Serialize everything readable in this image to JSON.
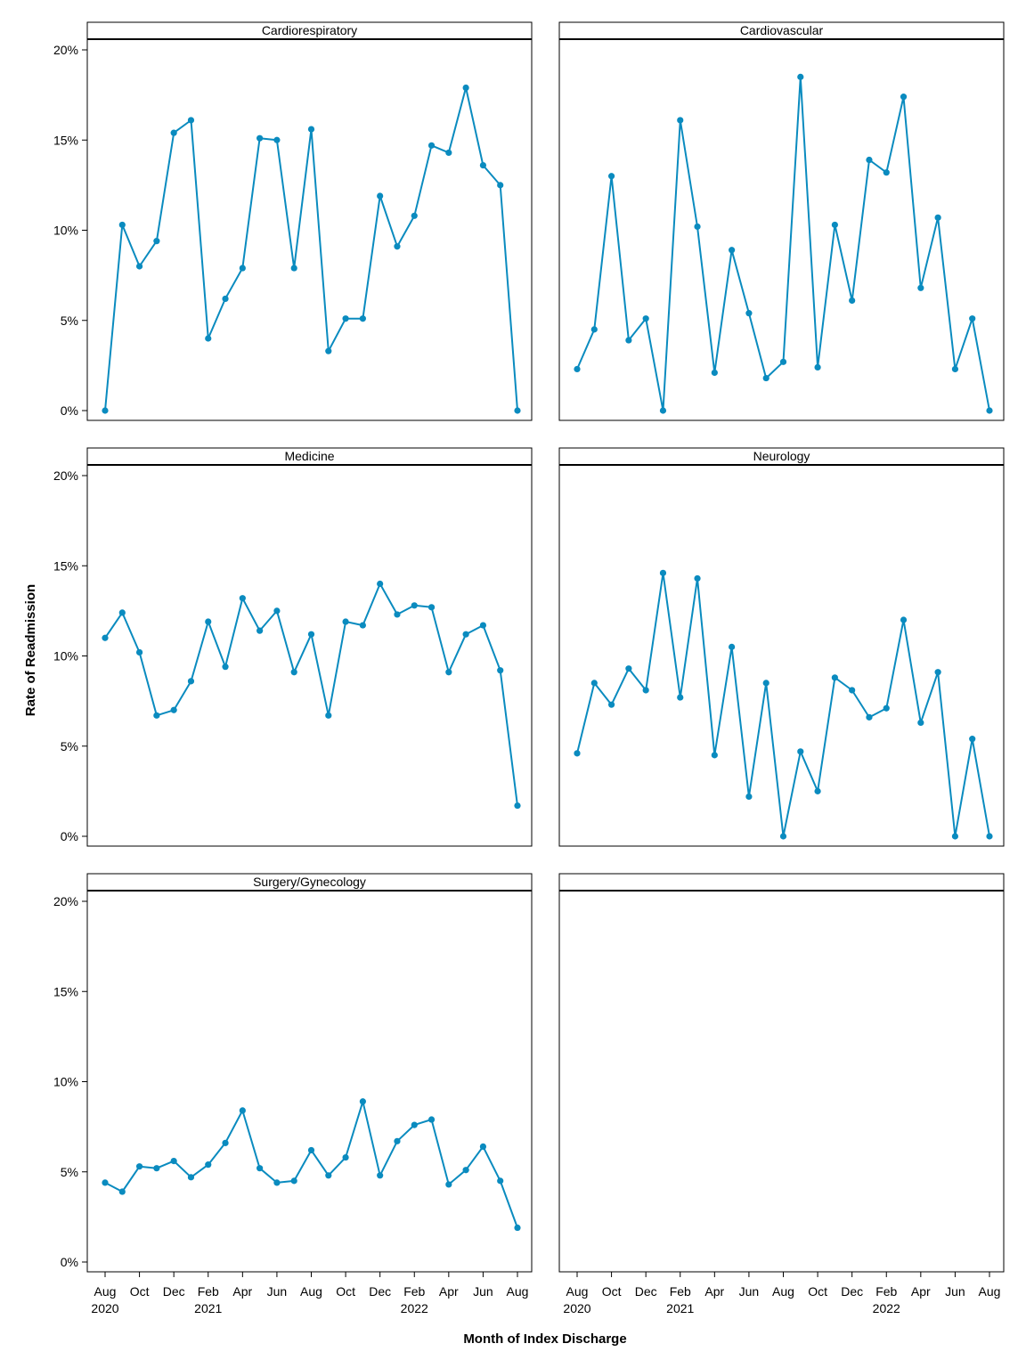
{
  "chart_data": {
    "type": "line",
    "ylabel": "Rate of Readmission",
    "xlabel": "Month of Index Discharge",
    "ylim": [
      0,
      20
    ],
    "yticks": [
      0,
      5,
      10,
      15,
      20
    ],
    "ytick_labels": [
      "0%",
      "5%",
      "10%",
      "15%",
      "20%"
    ],
    "series_color": "#0a8bbf",
    "x_months": [
      "Aug 2020",
      "Sep 2020",
      "Oct 2020",
      "Nov 2020",
      "Dec 2020",
      "Jan 2021",
      "Feb 2021",
      "Mar 2021",
      "Apr 2021",
      "May 2021",
      "Jun 2021",
      "Jul 2021",
      "Aug 2021",
      "Sep 2021",
      "Oct 2021",
      "Nov 2021",
      "Dec 2021",
      "Jan 2022",
      "Feb 2022",
      "Mar 2022",
      "Apr 2022",
      "May 2022",
      "Jun 2022",
      "Jul 2022",
      "Aug 2022"
    ],
    "xticks": [
      {
        "index": 0,
        "label": "Aug",
        "year": "2020"
      },
      {
        "index": 2,
        "label": "Oct",
        "year": ""
      },
      {
        "index": 4,
        "label": "Dec",
        "year": ""
      },
      {
        "index": 6,
        "label": "Feb",
        "year": "2021"
      },
      {
        "index": 8,
        "label": "Apr",
        "year": ""
      },
      {
        "index": 10,
        "label": "Jun",
        "year": ""
      },
      {
        "index": 12,
        "label": "Aug",
        "year": ""
      },
      {
        "index": 14,
        "label": "Oct",
        "year": ""
      },
      {
        "index": 16,
        "label": "Dec",
        "year": ""
      },
      {
        "index": 18,
        "label": "Feb",
        "year": "2022"
      },
      {
        "index": 20,
        "label": "Apr",
        "year": ""
      },
      {
        "index": 22,
        "label": "Jun",
        "year": ""
      },
      {
        "index": 24,
        "label": "Aug",
        "year": ""
      }
    ],
    "panels": [
      {
        "name": "Cardiorespiratory",
        "values": [
          0,
          10.3,
          8.0,
          9.4,
          15.4,
          16.1,
          4.0,
          6.2,
          7.9,
          15.1,
          15.0,
          7.9,
          15.6,
          3.3,
          5.1,
          5.1,
          11.9,
          9.1,
          10.8,
          14.7,
          14.3,
          17.9,
          13.6,
          12.5,
          0
        ]
      },
      {
        "name": "Cardiovascular",
        "values": [
          2.3,
          4.5,
          13.0,
          3.9,
          5.1,
          0,
          16.1,
          10.2,
          2.1,
          8.9,
          5.4,
          1.8,
          2.7,
          18.5,
          2.4,
          10.3,
          6.1,
          13.9,
          13.2,
          17.4,
          6.8,
          10.7,
          2.3,
          5.1,
          0
        ]
      },
      {
        "name": "Medicine",
        "values": [
          11.0,
          12.4,
          10.2,
          6.7,
          7.0,
          8.6,
          11.9,
          9.4,
          13.2,
          11.4,
          12.5,
          9.1,
          11.2,
          6.7,
          11.9,
          11.7,
          14.0,
          12.3,
          12.8,
          12.7,
          9.1,
          11.2,
          11.7,
          9.2,
          1.7
        ]
      },
      {
        "name": "Neurology",
        "values": [
          4.6,
          8.5,
          7.3,
          9.3,
          8.1,
          14.6,
          7.7,
          14.3,
          4.5,
          10.5,
          2.2,
          8.5,
          0,
          4.7,
          2.5,
          8.8,
          8.1,
          6.6,
          7.1,
          12.0,
          6.3,
          9.1,
          0,
          5.4,
          0
        ]
      },
      {
        "name": "Surgery/Gynecology",
        "values": [
          4.4,
          3.9,
          5.3,
          5.2,
          5.6,
          4.7,
          5.4,
          6.6,
          8.4,
          5.2,
          4.4,
          4.5,
          6.2,
          4.8,
          5.8,
          8.9,
          4.8,
          6.7,
          7.6,
          7.9,
          4.3,
          5.1,
          6.4,
          4.5,
          1.9
        ]
      },
      {
        "name": "",
        "values": []
      }
    ]
  }
}
